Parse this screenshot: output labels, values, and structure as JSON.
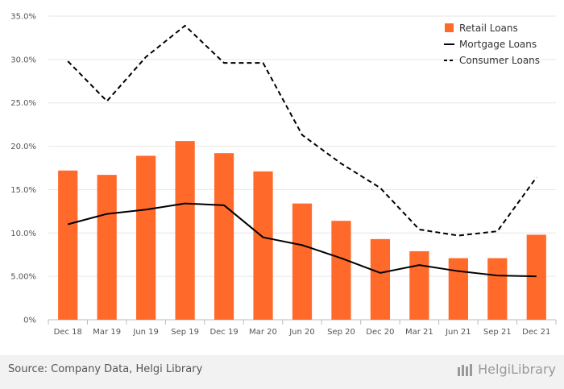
{
  "chart_data": {
    "type": "bar",
    "categories": [
      "Dec 18",
      "Mar 19",
      "Jun 19",
      "Sep 19",
      "Dec 19",
      "Mar 20",
      "Jun 20",
      "Sep 20",
      "Dec 20",
      "Mar 21",
      "Jun 21",
      "Sep 21",
      "Dec 21"
    ],
    "series": [
      {
        "name": "Retail Loans",
        "type": "bar",
        "color": "#ff6a2b",
        "values": [
          17.2,
          16.7,
          18.9,
          20.6,
          19.2,
          17.1,
          13.4,
          11.4,
          9.3,
          7.9,
          7.1,
          7.1,
          9.8
        ]
      },
      {
        "name": "Mortgage Loans",
        "type": "line",
        "style": "solid",
        "color": "#000000",
        "values": [
          11.0,
          12.2,
          12.7,
          13.4,
          13.2,
          9.5,
          8.6,
          7.1,
          5.4,
          6.3,
          5.6,
          5.1,
          5.0
        ]
      },
      {
        "name": "Consumer Loans",
        "type": "line",
        "style": "dashed",
        "color": "#000000",
        "values": [
          29.8,
          25.2,
          30.3,
          33.9,
          29.6,
          29.6,
          21.3,
          18.0,
          15.2,
          10.4,
          9.7,
          10.2,
          16.4
        ]
      }
    ],
    "ylim": [
      0,
      35
    ],
    "yticks": [
      "0%",
      "5.00%",
      "10.0%",
      "15.0%",
      "20.0%",
      "25.0%",
      "30.0%",
      "35.0%"
    ],
    "ytick_values": [
      0,
      5,
      10,
      15,
      20,
      25,
      30,
      35
    ],
    "grid": true,
    "legend": "top-right"
  },
  "footer": {
    "source": "Source: Company Data, Helgi Library",
    "brand": "HelgiLibrary"
  }
}
